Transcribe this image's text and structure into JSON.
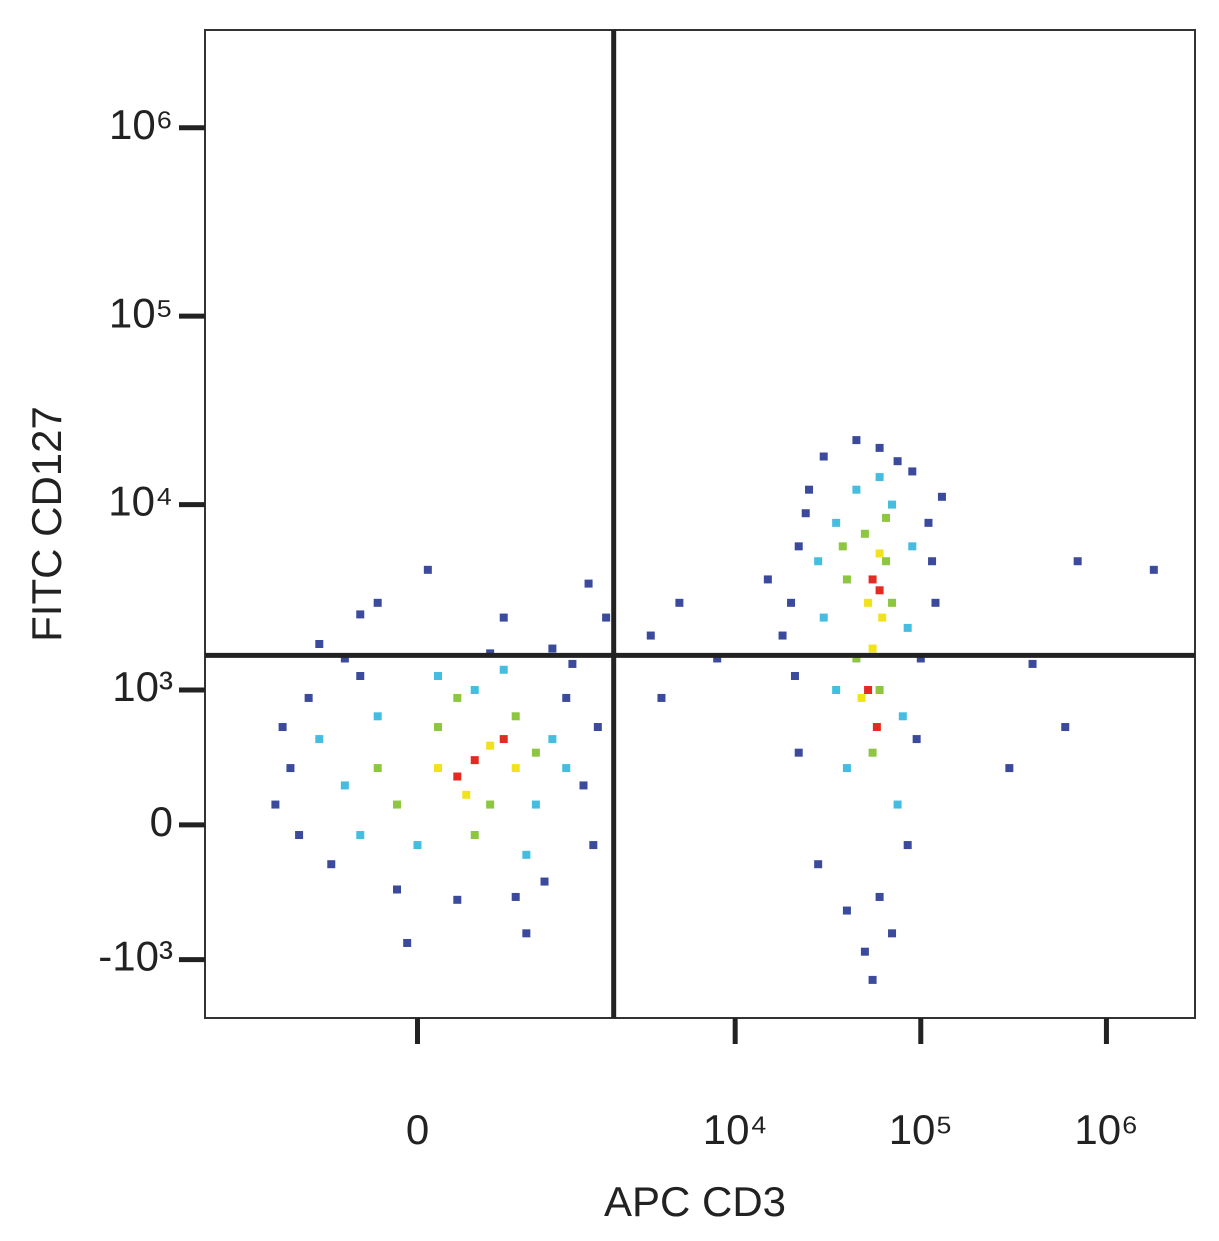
{
  "chart_data": {
    "type": "scatter",
    "xlabel": "APC CD3",
    "ylabel": "FITC CD127",
    "xscale": "arcsinh",
    "xcofactor": 389,
    "yscale": "arcsinh",
    "ycofactor": 400,
    "xlim": [
      -2700,
      3000000
    ],
    "ylim": [
      -2100,
      3300000
    ],
    "xticks": [
      0,
      {
        "value": 10000,
        "label": "10⁴"
      },
      {
        "value": 100000,
        "label": "10⁵"
      },
      {
        "value": 1000000,
        "label": "10⁶"
      }
    ],
    "yticks": [
      {
        "value": -1000,
        "label": "-10³"
      },
      0,
      {
        "value": 1000,
        "label": "10³"
      },
      {
        "value": 10000,
        "label": "10⁴"
      },
      {
        "value": 100000,
        "label": "10⁵"
      },
      {
        "value": 1000000,
        "label": "10⁶"
      }
    ],
    "gates": {
      "x": 2200,
      "y": 1560,
      "color": "#222222"
    },
    "series": [
      {
        "color": "#3b4a9c",
        "x": [
          -900,
          -700,
          -500,
          -300,
          -800,
          -1000,
          -400,
          1500,
          1200,
          1700,
          900,
          600,
          1300,
          200,
          -100,
          400,
          -600,
          1000,
          1800,
          -1100,
          500,
          -200,
          50,
          -50,
          700,
          2000,
          1600,
          -300,
          20000,
          22000,
          25000,
          30000,
          60000,
          90000,
          110000,
          120000,
          100000,
          95000,
          85000,
          60000,
          40000,
          28000,
          22000,
          21000,
          24000,
          45000,
          75000,
          115000,
          18000,
          15000,
          8000,
          5000,
          4000,
          3500,
          50000,
          55000,
          70000,
          130000,
          700000,
          1800000,
          400000,
          600000,
          300000
        ],
        "y": [
          300,
          900,
          -200,
          1200,
          -50,
          600,
          1500,
          200,
          900,
          -100,
          -300,
          -400,
          1400,
          -420,
          -350,
          1600,
          1800,
          1700,
          600,
          100,
          2500,
          3000,
          4500,
          -800,
          -700,
          2500,
          3800,
          2600,
          3000,
          6000,
          12000,
          18000,
          20000,
          15000,
          8000,
          3000,
          1500,
          500,
          -100,
          -400,
          -500,
          -200,
          400,
          1200,
          9000,
          22000,
          17000,
          5000,
          2000,
          4000,
          1500,
          3000,
          900,
          2000,
          -900,
          -1300,
          -700,
          11000,
          5000,
          4500,
          1400,
          600,
          300
        ]
      },
      {
        "color": "#45bde0",
        "x": [
          -400,
          -200,
          0,
          300,
          800,
          1000,
          700,
          -300,
          100,
          1200,
          -600,
          500,
          30000,
          35000,
          45000,
          70000,
          90000,
          85000,
          80000,
          40000,
          35000,
          60000,
          28000,
          75000
        ],
        "y": [
          200,
          700,
          -100,
          1000,
          100,
          500,
          -150,
          -50,
          1200,
          300,
          500,
          1300,
          2500,
          8000,
          12000,
          10000,
          6000,
          2200,
          700,
          300,
          1000,
          14000,
          5000,
          100
        ]
      },
      {
        "color": "#8dc63f",
        "x": [
          -200,
          100,
          400,
          600,
          300,
          -100,
          800,
          200,
          40000,
          50000,
          65000,
          70000,
          45000,
          55000,
          60000,
          38000,
          65000
        ],
        "y": [
          300,
          600,
          100,
          700,
          -50,
          100,
          400,
          900,
          4000,
          7000,
          8500,
          3000,
          1500,
          400,
          1000,
          6000,
          5000
        ]
      },
      {
        "color": "#f2e21c",
        "x": [
          100,
          400,
          250,
          600,
          52000,
          60000,
          48000,
          55000,
          62000
        ],
        "y": [
          300,
          450,
          150,
          300,
          3000,
          5500,
          900,
          1700,
          2500
        ]
      },
      {
        "color": "#e42b22",
        "x": [
          300,
          500,
          200,
          55000,
          58000,
          52000,
          60000
        ],
        "y": [
          350,
          500,
          250,
          4000,
          600,
          1000,
          3500
        ]
      }
    ]
  }
}
